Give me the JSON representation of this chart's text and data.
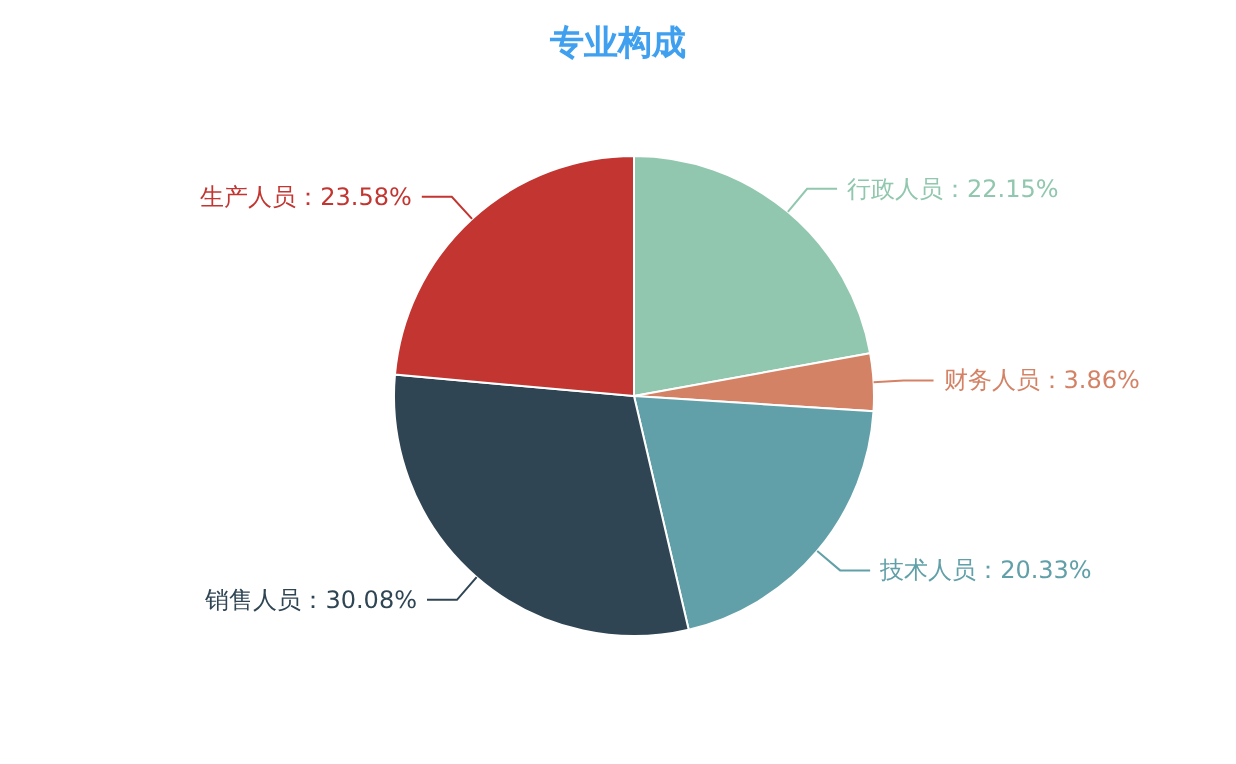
{
  "chart_data": {
    "type": "pie",
    "title": "专业构成",
    "categories": [
      "行政人员",
      "财务人员",
      "技术人员",
      "销售人员",
      "生产人员"
    ],
    "values": [
      22.15,
      3.86,
      20.33,
      30.08,
      23.58
    ],
    "value_labels": [
      "22.15%",
      "3.86%",
      "20.33%",
      "30.08%",
      "23.58%"
    ],
    "colors": [
      "#91c7ae",
      "#d48265",
      "#61a0a8",
      "#2f4554",
      "#c23531"
    ]
  }
}
